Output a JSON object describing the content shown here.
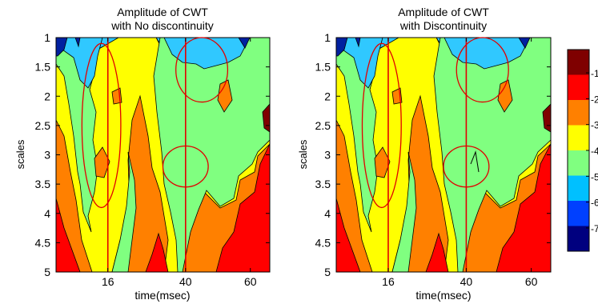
{
  "chart_data": [
    {
      "type": "heatmap",
      "title": "Amplitude of CWT",
      "subtitle": "with No discontinuity",
      "xlabel": "time(msec)",
      "ylabel": "scales",
      "xticks": [
        16,
        40,
        60
      ],
      "yticks": [
        1,
        1.5,
        2,
        2.5,
        3,
        3.5,
        4,
        4.5,
        5
      ],
      "ytick_labels": [
        "1",
        "1.5",
        "2",
        "2.5",
        "3",
        "3.5",
        "4",
        "4.5",
        "5"
      ],
      "xlim": [
        0,
        66
      ],
      "ylim": [
        1,
        5
      ],
      "y_reversed": true,
      "marker_lines_x": [
        16,
        40
      ],
      "highlight_ellipses": [
        {
          "cx": 14,
          "cy": 2.5,
          "rx": 6,
          "ry": 1.4
        },
        {
          "cx": 45,
          "cy": 1.55,
          "rx": 8,
          "ry": 0.55
        },
        {
          "cx": 40,
          "cy": 3.2,
          "rx": 7,
          "ry": 0.35
        }
      ]
    },
    {
      "type": "heatmap",
      "title": "Amplitude of CWT",
      "subtitle": "with Discontinuity",
      "xlabel": "time(msec)",
      "ylabel": "scales",
      "xticks": [
        16,
        40,
        60
      ],
      "yticks": [
        1,
        1.5,
        2,
        2.5,
        3,
        3.5,
        4,
        4.5,
        5
      ],
      "ytick_labels": [
        "1",
        "1.5",
        "2",
        "2.5",
        "3",
        "3.5",
        "4",
        "4.5",
        "5"
      ],
      "xlim": [
        0,
        66
      ],
      "ylim": [
        1,
        5
      ],
      "y_reversed": true,
      "marker_lines_x": [
        16,
        40
      ],
      "highlight_ellipses": [
        {
          "cx": 14,
          "cy": 2.5,
          "rx": 6,
          "ry": 1.4
        },
        {
          "cx": 45,
          "cy": 1.55,
          "rx": 8,
          "ry": 0.55
        },
        {
          "cx": 40,
          "cy": 3.2,
          "rx": 7,
          "ry": 0.35
        }
      ]
    }
  ],
  "colorbar": {
    "tick_labels": [
      "-1",
      "-2",
      "-3",
      "-4",
      "-5",
      "-6",
      "-7"
    ],
    "colors": [
      "#7f0000",
      "#ff0000",
      "#ff8000",
      "#ffff00",
      "#80ff80",
      "#00c0ff",
      "#0040ff",
      "#00007f"
    ]
  },
  "colors": {
    "red": "#ff0000",
    "orange": "#ff8000",
    "yellow": "#ffff00",
    "light_green": "#80ff80",
    "cyan": "#30c8ff",
    "blue": "#0020a0",
    "dark_red": "#800000",
    "annotation": "#e00000"
  }
}
